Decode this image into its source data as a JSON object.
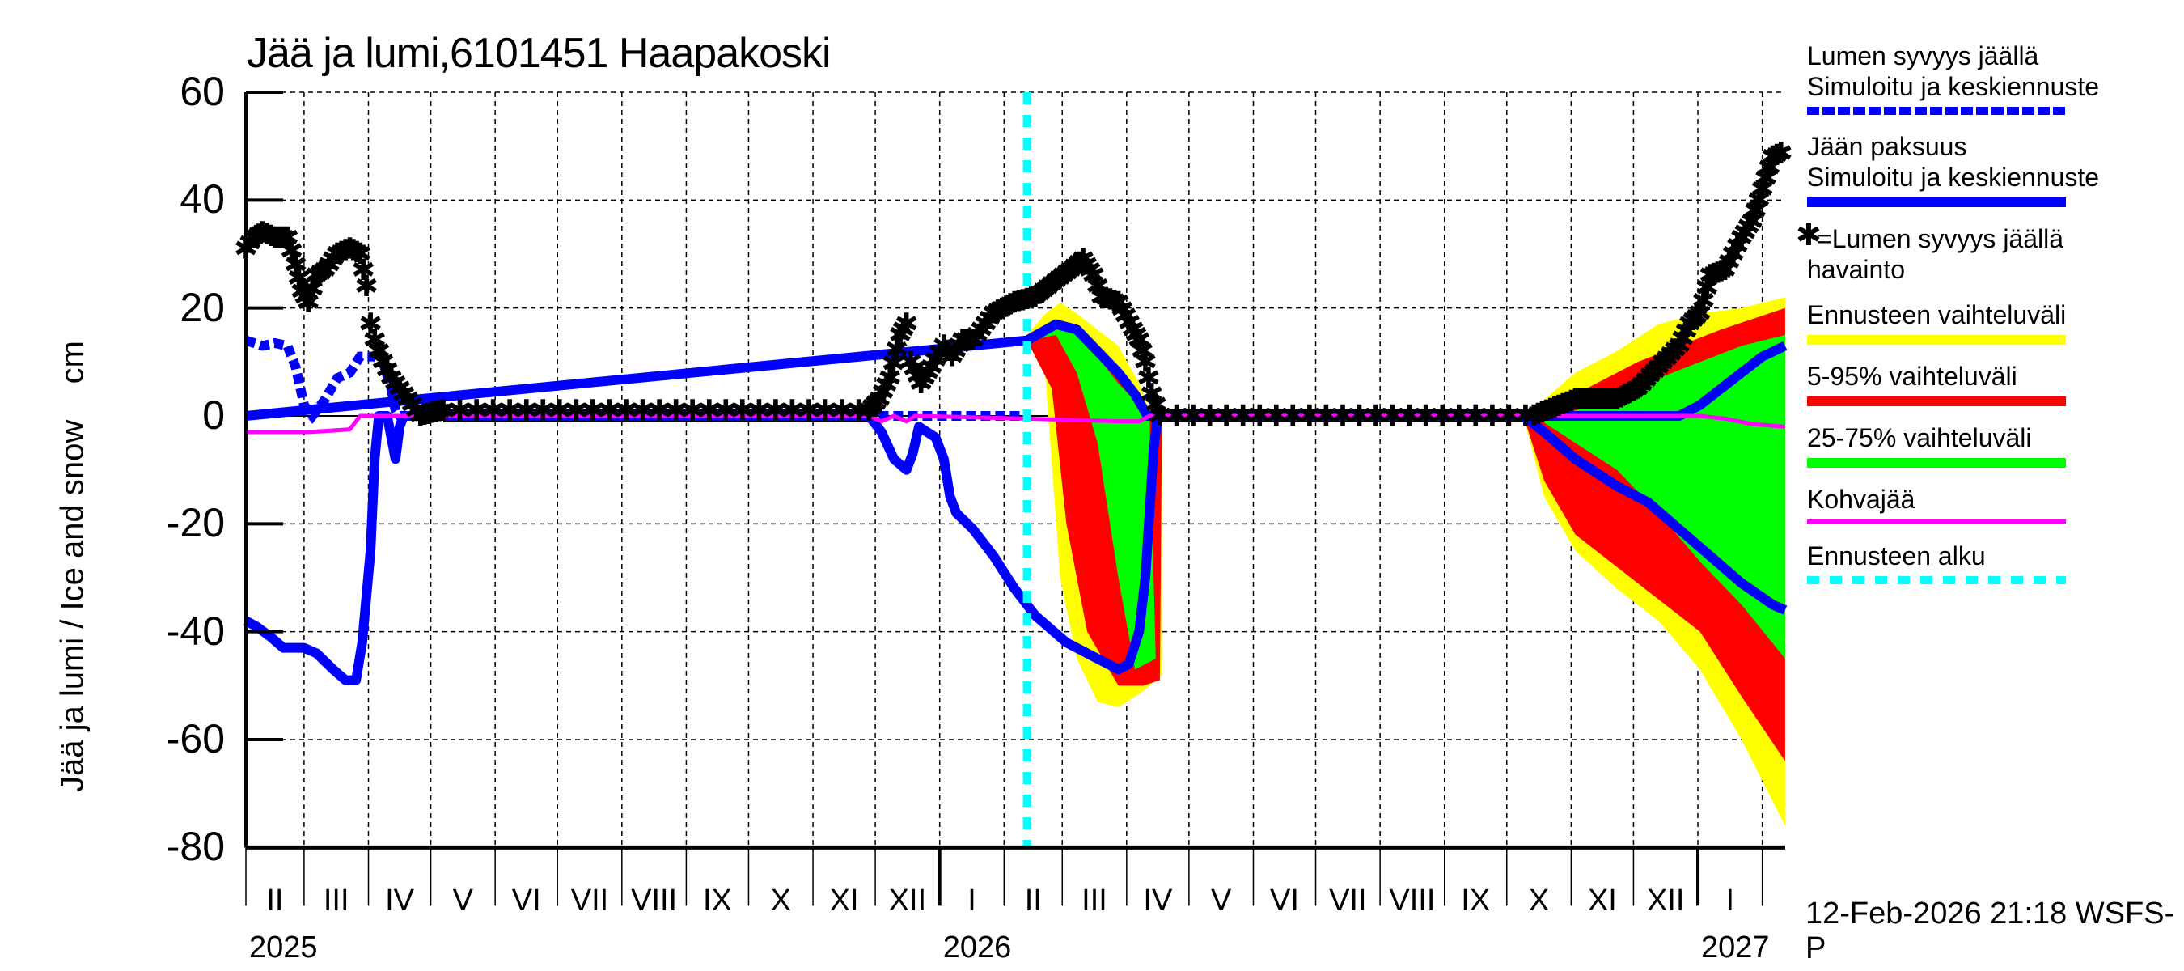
{
  "title": "Jää ja lumi,6101451 Haapakoski",
  "y_axis_label": "Jää ja lumi / Ice and snow    cm",
  "timestamp": "12-Feb-2026 21:18 WSFS-P",
  "colors": {
    "snow_sim": "#0000ff",
    "ice_sim": "#0000ff",
    "obs": "#000000",
    "range_full": "#ffff00",
    "range_5_95": "#ff0000",
    "range_25_75": "#00ff00",
    "slush": "#ff00ff",
    "forecast_start": "#00ffff"
  },
  "legend": [
    {
      "id": "snow_sim",
      "line1": "Lumen syvyys jäällä",
      "line2": "Simuloitu ja keskiennuste",
      "style": "dashed-blue"
    },
    {
      "id": "ice_sim",
      "line1": "Jään paksuus",
      "line2": "Simuloitu ja keskiennuste",
      "style": "solid-blue"
    },
    {
      "id": "obs",
      "line1": "=Lumen syvyys jäällä",
      "line2": "havainto",
      "style": "star"
    },
    {
      "id": "range_full",
      "line1": "Ennusteen vaihteluväli",
      "style": "yellow"
    },
    {
      "id": "range_5_95",
      "line1": "5-95% vaihteluväli",
      "style": "red"
    },
    {
      "id": "range_25_75",
      "line1": "25-75% vaihteluväli",
      "style": "green"
    },
    {
      "id": "slush",
      "line1": "Kohvajää",
      "style": "magenta"
    },
    {
      "id": "forecast_start",
      "line1": "Ennusteen alku",
      "style": "cyan-dashed"
    }
  ],
  "axis": {
    "y_ticks": [
      "60",
      "40",
      "20",
      "0",
      "-20",
      "-40",
      "-60",
      "-80"
    ],
    "months": [
      "II",
      "III",
      "IV",
      "V",
      "VI",
      "VII",
      "VIII",
      "IX",
      "X",
      "XI",
      "XII",
      "I",
      "II",
      "III",
      "IV",
      "V",
      "VI",
      "VII",
      "VIII",
      "IX",
      "X",
      "XI",
      "XII",
      "I"
    ],
    "years": [
      "2025",
      "2026",
      "2027"
    ]
  },
  "chart_data": {
    "type": "line",
    "title": "Jää ja lumi,6101451 Haapakoski",
    "xlabel": "",
    "ylabel": "Jää ja lumi / Ice and snow cm",
    "ylim": [
      -80,
      60
    ],
    "x_range": [
      "2025-02-01",
      "2027-02-12"
    ],
    "x_unit": "days since 2025-02-01",
    "grid": true,
    "legend_position": "right",
    "forecast_start_day": 376,
    "series": [
      {
        "name": "Lumen syvyys jäällä (simuloitu)",
        "style": "dashed",
        "points": [
          [
            0,
            14
          ],
          [
            8,
            13
          ],
          [
            14,
            13.5
          ],
          [
            20,
            13
          ],
          [
            24,
            9
          ],
          [
            28,
            2
          ],
          [
            32,
            0
          ],
          [
            38,
            3
          ],
          [
            44,
            7
          ],
          [
            50,
            8
          ],
          [
            55,
            11
          ],
          [
            62,
            11
          ],
          [
            66,
            10
          ],
          [
            70,
            5
          ],
          [
            72,
            1
          ],
          [
            74,
            0
          ],
          [
            300,
            0
          ],
          [
            310,
            0
          ],
          [
            320,
            0
          ],
          [
            330,
            0
          ],
          [
            345,
            0
          ],
          [
            376,
            0
          ]
        ]
      },
      {
        "name": "Jään paksuus (simuloitu ja keskiennuste)",
        "style": "solid",
        "points": [
          [
            0,
            -38
          ],
          [
            5,
            -39
          ],
          [
            12,
            -41
          ],
          [
            18,
            -43
          ],
          [
            28,
            -43
          ],
          [
            34,
            -44
          ],
          [
            42,
            -47
          ],
          [
            48,
            -49
          ],
          [
            53,
            -49
          ],
          [
            56,
            -42
          ],
          [
            60,
            -25
          ],
          [
            62,
            -8
          ],
          [
            64,
            0
          ],
          [
            68,
            0
          ],
          [
            70,
            -4
          ],
          [
            72,
            -8
          ],
          [
            74,
            -2
          ],
          [
            76,
            0
          ],
          [
            300,
            0
          ],
          [
            306,
            -3
          ],
          [
            312,
            -8
          ],
          [
            318,
            -10
          ],
          [
            321,
            -7
          ],
          [
            324,
            -2
          ],
          [
            328,
            -3
          ],
          [
            332,
            -4
          ],
          [
            336,
            -8
          ],
          [
            339,
            -15
          ],
          [
            342,
            -18
          ],
          [
            350,
            -21
          ],
          [
            360,
            -26
          ],
          [
            370,
            -32
          ],
          [
            380,
            -37
          ],
          [
            395,
            -42
          ],
          [
            410,
            -45
          ],
          [
            420,
            -47
          ],
          [
            425,
            -46
          ],
          [
            430,
            -40
          ],
          [
            433,
            -30
          ],
          [
            435,
            -18
          ],
          [
            437,
            -6
          ],
          [
            439,
            0
          ],
          [
            615,
            0
          ],
          [
            625,
            -3
          ],
          [
            640,
            -8
          ],
          [
            660,
            -13
          ],
          [
            675,
            -16
          ],
          [
            690,
            -21
          ],
          [
            705,
            -26
          ],
          [
            720,
            -31
          ],
          [
            735,
            -35
          ],
          [
            741,
            -36
          ]
        ]
      },
      {
        "name": "Jään paksuus keskiennuste (yläpuoli/lumi)",
        "style": "solid",
        "points": [
          [
            0,
            0
          ],
          [
            376,
            14
          ],
          [
            390,
            17
          ],
          [
            400,
            16
          ],
          [
            410,
            12
          ],
          [
            420,
            8
          ],
          [
            428,
            4
          ],
          [
            434,
            0
          ],
          [
            690,
            0
          ],
          [
            700,
            2
          ],
          [
            710,
            5
          ],
          [
            720,
            8
          ],
          [
            730,
            11
          ],
          [
            741,
            13
          ]
        ]
      },
      {
        "name": "Kohvajää",
        "style": "solid",
        "points": [
          [
            0,
            -3
          ],
          [
            20,
            -3
          ],
          [
            30,
            -3
          ],
          [
            50,
            -2.5
          ],
          [
            55,
            0
          ],
          [
            300,
            0
          ],
          [
            306,
            -1
          ],
          [
            312,
            0
          ],
          [
            318,
            -1
          ],
          [
            322,
            0
          ],
          [
            376,
            -0.5
          ],
          [
            420,
            -1
          ],
          [
            430,
            -1
          ],
          [
            435,
            0
          ],
          [
            700,
            0
          ],
          [
            712,
            -0.5
          ],
          [
            725,
            -1.5
          ],
          [
            741,
            -2
          ]
        ]
      },
      {
        "name": "Lumen syvyys jäällä havainto",
        "style": "markers",
        "marker": "*",
        "points": [
          [
            0,
            31
          ],
          [
            4,
            33
          ],
          [
            8,
            34
          ],
          [
            14,
            33
          ],
          [
            20,
            33
          ],
          [
            24,
            28
          ],
          [
            27,
            23
          ],
          [
            30,
            21
          ],
          [
            34,
            26
          ],
          [
            38,
            27
          ],
          [
            44,
            30
          ],
          [
            50,
            31
          ],
          [
            55,
            30
          ],
          [
            58,
            24
          ],
          [
            60,
            17
          ],
          [
            62,
            14
          ],
          [
            66,
            10
          ],
          [
            70,
            7
          ],
          [
            74,
            5
          ],
          [
            78,
            3
          ],
          [
            84,
            0
          ],
          [
            95,
            1
          ],
          [
            300,
            1
          ],
          [
            305,
            3
          ],
          [
            310,
            7
          ],
          [
            315,
            15
          ],
          [
            318,
            17
          ],
          [
            320,
            10
          ],
          [
            325,
            6
          ],
          [
            330,
            9
          ],
          [
            336,
            13
          ],
          [
            340,
            11
          ],
          [
            345,
            14
          ],
          [
            350,
            14
          ],
          [
            360,
            19
          ],
          [
            370,
            21
          ],
          [
            380,
            22
          ],
          [
            390,
            25
          ],
          [
            397,
            27
          ],
          [
            403,
            29
          ],
          [
            408,
            26
          ],
          [
            412,
            22
          ],
          [
            420,
            21
          ],
          [
            427,
            16
          ],
          [
            430,
            14
          ],
          [
            433,
            10
          ],
          [
            436,
            4
          ],
          [
            440,
            0
          ],
          [
            620,
            0
          ],
          [
            640,
            3
          ],
          [
            660,
            3
          ],
          [
            670,
            5
          ],
          [
            680,
            9
          ],
          [
            690,
            13
          ],
          [
            695,
            17
          ],
          [
            700,
            19
          ],
          [
            705,
            26
          ],
          [
            712,
            27
          ],
          [
            720,
            33
          ],
          [
            725,
            36
          ],
          [
            730,
            42
          ],
          [
            735,
            48
          ],
          [
            741,
            49
          ]
        ]
      }
    ],
    "bands": [
      {
        "name": "Ennusteen vaihteluväli",
        "color": "#ffff00",
        "spring_2026": {
          "upper": [
            [
              376,
              15
            ],
            [
              385,
              19
            ],
            [
              392,
              21
            ],
            [
              400,
              19
            ],
            [
              410,
              16
            ],
            [
              420,
              13
            ],
            [
              430,
              6
            ],
            [
              436,
              0
            ],
            [
              441,
              0
            ]
          ],
          "lower": [
            [
              376,
              14
            ],
            [
              384,
              12
            ],
            [
              392,
              -30
            ],
            [
              400,
              -45
            ],
            [
              410,
              -53
            ],
            [
              420,
              -54
            ],
            [
              432,
              -51
            ],
            [
              441,
              -48
            ]
          ]
        },
        "winter_2026_27": {
          "upper": [
            [
              615,
              0
            ],
            [
              625,
              3
            ],
            [
              640,
              8
            ],
            [
              660,
              12
            ],
            [
              680,
              17
            ],
            [
              700,
              19
            ],
            [
              720,
              20
            ],
            [
              741,
              22
            ]
          ],
          "lower": [
            [
              615,
              0
            ],
            [
              625,
              -15
            ],
            [
              640,
              -25
            ],
            [
              660,
              -32
            ],
            [
              680,
              -38
            ],
            [
              700,
              -47
            ],
            [
              720,
              -60
            ],
            [
              741,
              -76
            ]
          ]
        }
      },
      {
        "name": "5-95% vaihteluväli",
        "color": "#ff0000",
        "spring_2026": {
          "upper": [
            [
              376,
              14
            ],
            [
              390,
              17
            ],
            [
              400,
              16
            ],
            [
              410,
              12
            ],
            [
              420,
              8
            ],
            [
              430,
              3
            ],
            [
              437,
              0
            ],
            [
              441,
              0
            ]
          ],
          "lower": [
            [
              376,
              14
            ],
            [
              388,
              5
            ],
            [
              395,
              -20
            ],
            [
              405,
              -40
            ],
            [
              420,
              -50
            ],
            [
              432,
              -50
            ],
            [
              440,
              -49
            ]
          ]
        },
        "winter_2026_27": {
          "upper": [
            [
              615,
              0
            ],
            [
              630,
              2
            ],
            [
              650,
              6
            ],
            [
              670,
              10
            ],
            [
              690,
              13
            ],
            [
              710,
              16
            ],
            [
              741,
              20
            ]
          ],
          "lower": [
            [
              615,
              0
            ],
            [
              625,
              -12
            ],
            [
              640,
              -22
            ],
            [
              660,
              -28
            ],
            [
              680,
              -34
            ],
            [
              700,
              -40
            ],
            [
              720,
              -52
            ],
            [
              741,
              -64
            ]
          ]
        }
      },
      {
        "name": "25-75% vaihteluväli",
        "color": "#00ff00",
        "spring_2026": {
          "upper": [
            [
              376,
              14
            ],
            [
              390,
              17
            ],
            [
              400,
              15
            ],
            [
              410,
              11
            ],
            [
              420,
              6
            ],
            [
              430,
              2
            ],
            [
              435,
              0
            ]
          ],
          "lower": [
            [
              376,
              14
            ],
            [
              390,
              15
            ],
            [
              400,
              8
            ],
            [
              410,
              -5
            ],
            [
              420,
              -30
            ],
            [
              428,
              -47
            ],
            [
              438,
              -45
            ]
          ]
        },
        "winter_2026_27": {
          "upper": [
            [
              620,
              0
            ],
            [
              640,
              1
            ],
            [
              660,
              4
            ],
            [
              680,
              7
            ],
            [
              700,
              10
            ],
            [
              720,
              13
            ],
            [
              741,
              15
            ]
          ],
          "lower": [
            [
              620,
              0
            ],
            [
              640,
              -5
            ],
            [
              660,
              -10
            ],
            [
              680,
              -18
            ],
            [
              700,
              -27
            ],
            [
              720,
              -35
            ],
            [
              741,
              -45
            ]
          ]
        }
      }
    ]
  }
}
